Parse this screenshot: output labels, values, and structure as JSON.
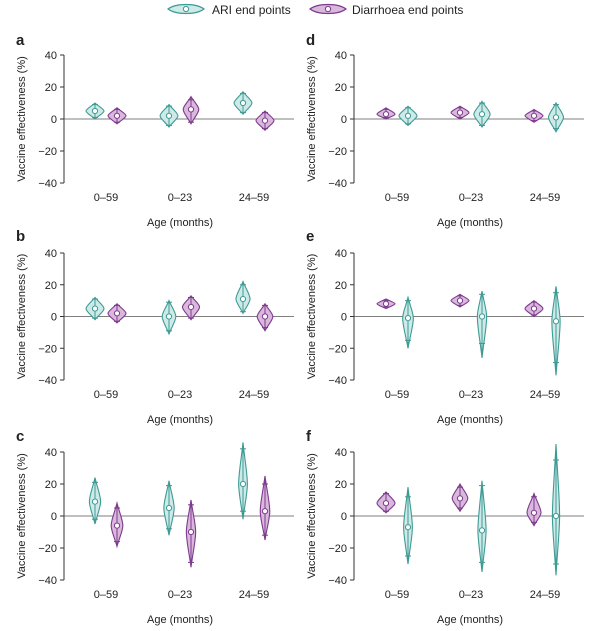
{
  "colors": {
    "ari_fill": "#cdeae8",
    "ari_stroke": "#3e9a94",
    "diar_fill": "#d9b8dc",
    "diar_stroke": "#7d3a8e",
    "axis": "#333333"
  },
  "legend": [
    {
      "key": "ari",
      "label": "ARI end points"
    },
    {
      "key": "diar",
      "label": "Diarrhoea end points"
    }
  ],
  "chart_data": [
    {
      "panel": "a",
      "type": "violin",
      "ylabel": "Vaccine effectiveness (%)",
      "xlabel": "Age (months)",
      "ylim": [
        -40,
        40
      ],
      "yticks": [
        "40",
        "20",
        "0",
        "−20",
        "−40"
      ],
      "categories": [
        "0–59",
        "0–23",
        "24–59"
      ],
      "series": [
        {
          "name": "ARI end points",
          "key": "ari",
          "points": [
            {
              "mid": 5,
              "lo": 0,
              "hi": 10,
              "ci_lo": 1,
              "ci_hi": 9
            },
            {
              "mid": 2,
              "lo": -5,
              "hi": 9,
              "ci_lo": -4,
              "ci_hi": 8
            },
            {
              "mid": 10,
              "lo": 3,
              "hi": 17,
              "ci_lo": 4,
              "ci_hi": 16
            }
          ]
        },
        {
          "name": "Diarrhoea end points",
          "key": "diar",
          "points": [
            {
              "mid": 2,
              "lo": -3,
              "hi": 7,
              "ci_lo": -2,
              "ci_hi": 6
            },
            {
              "mid": 6,
              "lo": -3,
              "hi": 14,
              "ci_lo": -2,
              "ci_hi": 12
            },
            {
              "mid": -1,
              "lo": -7,
              "hi": 5,
              "ci_lo": -6,
              "ci_hi": 4
            }
          ]
        }
      ]
    },
    {
      "panel": "b",
      "type": "violin",
      "ylabel": "Vaccine effectiveness (%)",
      "xlabel": "Age (months)",
      "ylim": [
        -40,
        40
      ],
      "yticks": [
        "40",
        "20",
        "0",
        "−20",
        "−40"
      ],
      "categories": [
        "0–59",
        "0–23",
        "24–59"
      ],
      "series": [
        {
          "name": "ARI end points",
          "key": "ari",
          "points": [
            {
              "mid": 5,
              "lo": -2,
              "hi": 12,
              "ci_lo": -1,
              "ci_hi": 11
            },
            {
              "mid": 0,
              "lo": -11,
              "hi": 10,
              "ci_lo": -9,
              "ci_hi": 9
            },
            {
              "mid": 11,
              "lo": 2,
              "hi": 22,
              "ci_lo": 3,
              "ci_hi": 20
            }
          ]
        },
        {
          "name": "Diarrhoea end points",
          "key": "diar",
          "points": [
            {
              "mid": 2,
              "lo": -4,
              "hi": 8,
              "ci_lo": -3,
              "ci_hi": 7
            },
            {
              "mid": 6,
              "lo": -2,
              "hi": 13,
              "ci_lo": -1,
              "ci_hi": 12
            },
            {
              "mid": 0,
              "lo": -9,
              "hi": 8,
              "ci_lo": -7,
              "ci_hi": 7
            }
          ]
        }
      ]
    },
    {
      "panel": "c",
      "type": "violin",
      "ylabel": "Vaccine effectiveness (%)",
      "xlabel": "Age (months)",
      "ylim": [
        -40,
        40
      ],
      "yticks": [
        "40",
        "20",
        "0",
        "−20",
        "−40"
      ],
      "categories": [
        "0–59",
        "0–23",
        "24–59"
      ],
      "series": [
        {
          "name": "ARI end points",
          "key": "ari",
          "points": [
            {
              "mid": 9,
              "lo": -5,
              "hi": 24,
              "ci_lo": -2,
              "ci_hi": 21
            },
            {
              "mid": 5,
              "lo": -12,
              "hi": 22,
              "ci_lo": -8,
              "ci_hi": 19
            },
            {
              "mid": 20,
              "lo": -2,
              "hi": 46,
              "ci_lo": 3,
              "ci_hi": 42
            }
          ]
        },
        {
          "name": "Diarrhoea end points",
          "key": "diar",
          "points": [
            {
              "mid": -6,
              "lo": -19,
              "hi": 8,
              "ci_lo": -16,
              "ci_hi": 5
            },
            {
              "mid": -10,
              "lo": -32,
              "hi": 10,
              "ci_lo": -29,
              "ci_hi": 7
            },
            {
              "mid": 3,
              "lo": -15,
              "hi": 25,
              "ci_lo": -12,
              "ci_hi": 20
            }
          ]
        }
      ]
    },
    {
      "panel": "d",
      "type": "violin",
      "ylabel": "Vaccine effectiveness (%)",
      "xlabel": "Age (months)",
      "ylim": [
        -40,
        40
      ],
      "yticks": [
        "40",
        "20",
        "0",
        "−20",
        "−40"
      ],
      "categories": [
        "0–59",
        "0–23",
        "24–59"
      ],
      "series": [
        {
          "name": "Diarrhoea end points",
          "key": "diar",
          "points": [
            {
              "mid": 3,
              "lo": 0,
              "hi": 7,
              "ci_lo": 1,
              "ci_hi": 6
            },
            {
              "mid": 4,
              "lo": 0,
              "hi": 8,
              "ci_lo": 1,
              "ci_hi": 7
            },
            {
              "mid": 2,
              "lo": -2,
              "hi": 6,
              "ci_lo": -1,
              "ci_hi": 5
            }
          ]
        },
        {
          "name": "ARI end points",
          "key": "ari",
          "points": [
            {
              "mid": 2,
              "lo": -4,
              "hi": 8,
              "ci_lo": -3,
              "ci_hi": 7
            },
            {
              "mid": 3,
              "lo": -5,
              "hi": 11,
              "ci_lo": -4,
              "ci_hi": 10
            },
            {
              "mid": 1,
              "lo": -8,
              "hi": 10,
              "ci_lo": -6,
              "ci_hi": 9
            }
          ]
        }
      ]
    },
    {
      "panel": "e",
      "type": "violin",
      "ylabel": "Vaccine effectiveness (%)",
      "xlabel": "Age (months)",
      "ylim": [
        -40,
        40
      ],
      "yticks": [
        "40",
        "20",
        "0",
        "−20",
        "−40"
      ],
      "categories": [
        "0–59",
        "0–23",
        "24–59"
      ],
      "series": [
        {
          "name": "Diarrhoea end points",
          "key": "diar",
          "points": [
            {
              "mid": 8,
              "lo": 5,
              "hi": 11,
              "ci_lo": 6,
              "ci_hi": 10
            },
            {
              "mid": 10,
              "lo": 6,
              "hi": 14,
              "ci_lo": 7,
              "ci_hi": 13
            },
            {
              "mid": 5,
              "lo": 0,
              "hi": 10,
              "ci_lo": 1,
              "ci_hi": 9
            }
          ]
        },
        {
          "name": "ARI end points",
          "key": "ari",
          "points": [
            {
              "mid": -1,
              "lo": -20,
              "hi": 12,
              "ci_lo": -15,
              "ci_hi": 10
            },
            {
              "mid": 0,
              "lo": -26,
              "hi": 16,
              "ci_lo": -17,
              "ci_hi": 14
            },
            {
              "mid": -3,
              "lo": -37,
              "hi": 19,
              "ci_lo": -29,
              "ci_hi": 15
            }
          ]
        }
      ]
    },
    {
      "panel": "f",
      "type": "violin",
      "ylabel": "Vaccine effectiveness (%)",
      "xlabel": "Age (months)",
      "ylim": [
        -40,
        40
      ],
      "yticks": [
        "40",
        "20",
        "0",
        "−20",
        "−40"
      ],
      "categories": [
        "0–59",
        "0–23",
        "24–59"
      ],
      "series": [
        {
          "name": "Diarrhoea end points",
          "key": "diar",
          "points": [
            {
              "mid": 8,
              "lo": 2,
              "hi": 15,
              "ci_lo": 3,
              "ci_hi": 14
            },
            {
              "mid": 11,
              "lo": 3,
              "hi": 20,
              "ci_lo": 5,
              "ci_hi": 18
            },
            {
              "mid": 2,
              "lo": -6,
              "hi": 14,
              "ci_lo": -4,
              "ci_hi": 12
            }
          ]
        },
        {
          "name": "ARI end points",
          "key": "ari",
          "points": [
            {
              "mid": -7,
              "lo": -30,
              "hi": 18,
              "ci_lo": -25,
              "ci_hi": 12
            },
            {
              "mid": -9,
              "lo": -35,
              "hi": 22,
              "ci_lo": -29,
              "ci_hi": 19
            },
            {
              "mid": 0,
              "lo": -37,
              "hi": 45,
              "ci_lo": -30,
              "ci_hi": 35
            }
          ]
        }
      ]
    }
  ]
}
